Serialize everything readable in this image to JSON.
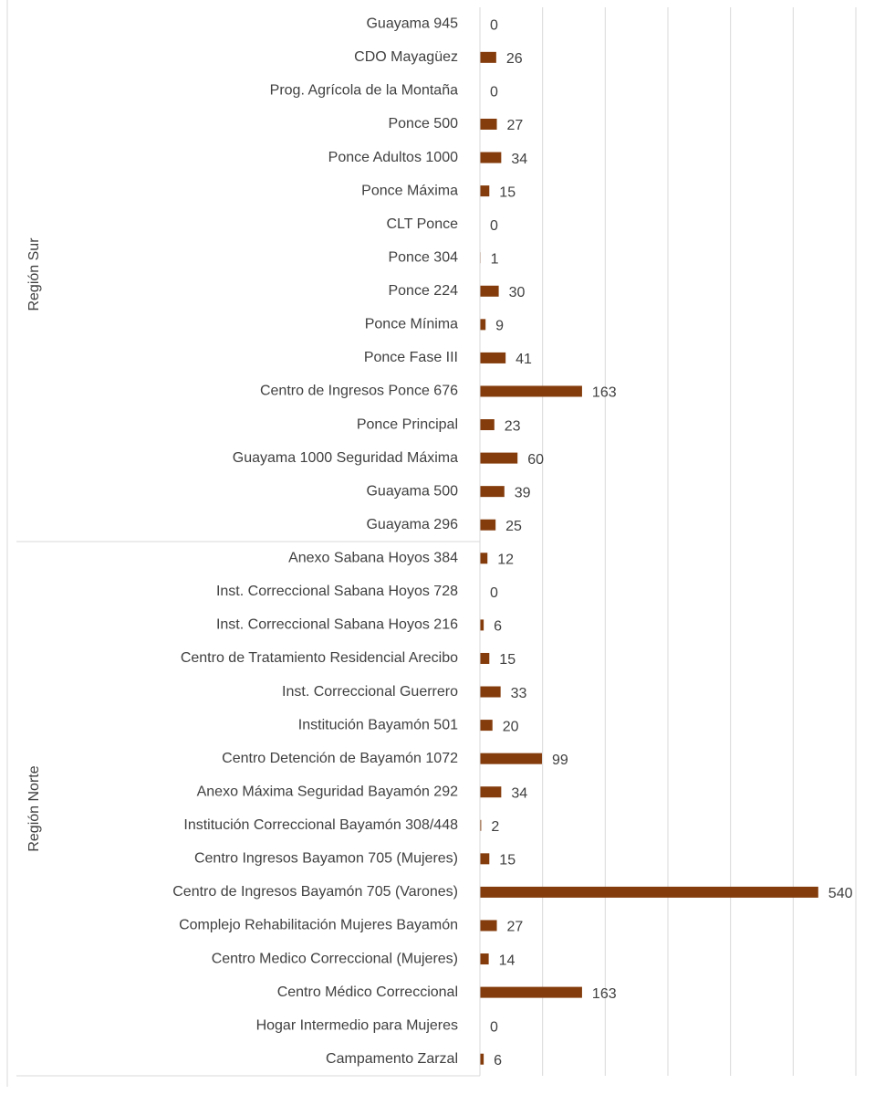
{
  "chart_data": {
    "type": "bar",
    "orientation": "horizontal",
    "color": "#843c0c",
    "grid": true,
    "xlim": [
      0,
      600
    ],
    "xticks": [
      0,
      100,
      200,
      300,
      400,
      500,
      600
    ],
    "groups": [
      {
        "name": "Región Sur",
        "categories": [
          "Guayama 945",
          "CDO Mayagüez",
          "Prog. Agrícola de la Montaña",
          "Ponce 500",
          "Ponce Adultos 1000",
          "Ponce Máxima",
          "CLT Ponce",
          "Ponce 304",
          "Ponce 224",
          "Ponce Mínima",
          "Ponce Fase III",
          "Centro de Ingresos Ponce 676",
          "Ponce Principal",
          "Guayama 1000 Seguridad Máxima",
          "Guayama 500",
          "Guayama 296"
        ],
        "values": [
          0,
          26,
          0,
          27,
          34,
          15,
          0,
          1,
          30,
          9,
          41,
          163,
          23,
          60,
          39,
          25
        ]
      },
      {
        "name": "Región Norte",
        "categories": [
          "Anexo Sabana Hoyos 384",
          "Inst. Correccional Sabana Hoyos 728",
          "Inst. Correccional Sabana Hoyos  216",
          "Centro de Tratamiento Residencial Arecibo",
          "Inst. Correccional Guerrero",
          "Institución Bayamón 501",
          "Centro Detención de Bayamón 1072",
          "Anexo Máxima Seguridad Bayamón 292",
          "Institución Correccional Bayamón 308/448",
          "Centro Ingresos Bayamon 705 (Mujeres)",
          "Centro de Ingresos Bayamón 705  (Varones)",
          "Complejo Rehabilitación Mujeres Bayamón",
          "Centro Medico Correccional (Mujeres)",
          "Centro Médico Correccional",
          "Hogar Intermedio para Mujeres",
          "Campamento Zarzal"
        ],
        "values": [
          12,
          0,
          6,
          15,
          33,
          20,
          99,
          34,
          2,
          15,
          540,
          27,
          14,
          163,
          0,
          6
        ]
      }
    ]
  }
}
